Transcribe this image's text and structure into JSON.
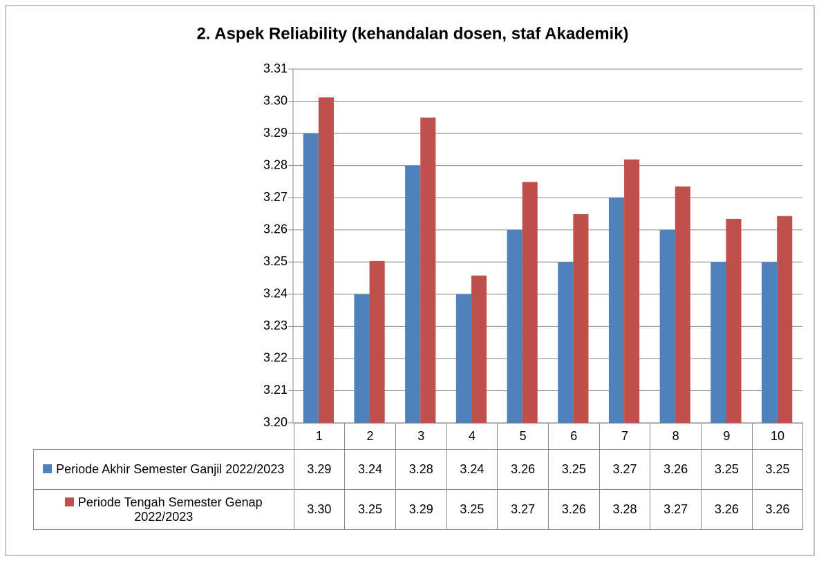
{
  "chart_data": {
    "type": "bar",
    "title": "2. Aspek Reliability (kehandalan dosen, staf Akademik)",
    "categories": [
      "1",
      "2",
      "3",
      "4",
      "5",
      "6",
      "7",
      "8",
      "9",
      "10"
    ],
    "series": [
      {
        "name": "Periode Akhir Semester Ganjil 2022/2023",
        "color": "#4f81bd",
        "values": [
          3.29,
          3.24,
          3.28,
          3.24,
          3.26,
          3.25,
          3.27,
          3.26,
          3.25,
          3.25
        ]
      },
      {
        "name": "Periode Tengah Semester Genap 2022/2023",
        "color": "#c0504d",
        "values": [
          3.3012,
          3.2503,
          3.2949,
          3.2458,
          3.2749,
          3.2649,
          3.2819,
          3.2735,
          3.2634,
          3.2643
        ],
        "value_labels": [
          "3.30",
          "3.25",
          "3.29",
          "3.25",
          "3.27",
          "3.26",
          "3.28",
          "3.27",
          "3.26",
          "3.26"
        ]
      }
    ],
    "ylim": [
      3.2,
      3.31
    ],
    "yticks": [
      {
        "value": 3.2,
        "label": "3.20"
      },
      3.21,
      3.22,
      3.23,
      3.24,
      3.25,
      3.26,
      3.27,
      3.28,
      3.29,
      {
        "value": 3.3,
        "label": "3.30"
      },
      3.31
    ],
    "grid": true
  }
}
